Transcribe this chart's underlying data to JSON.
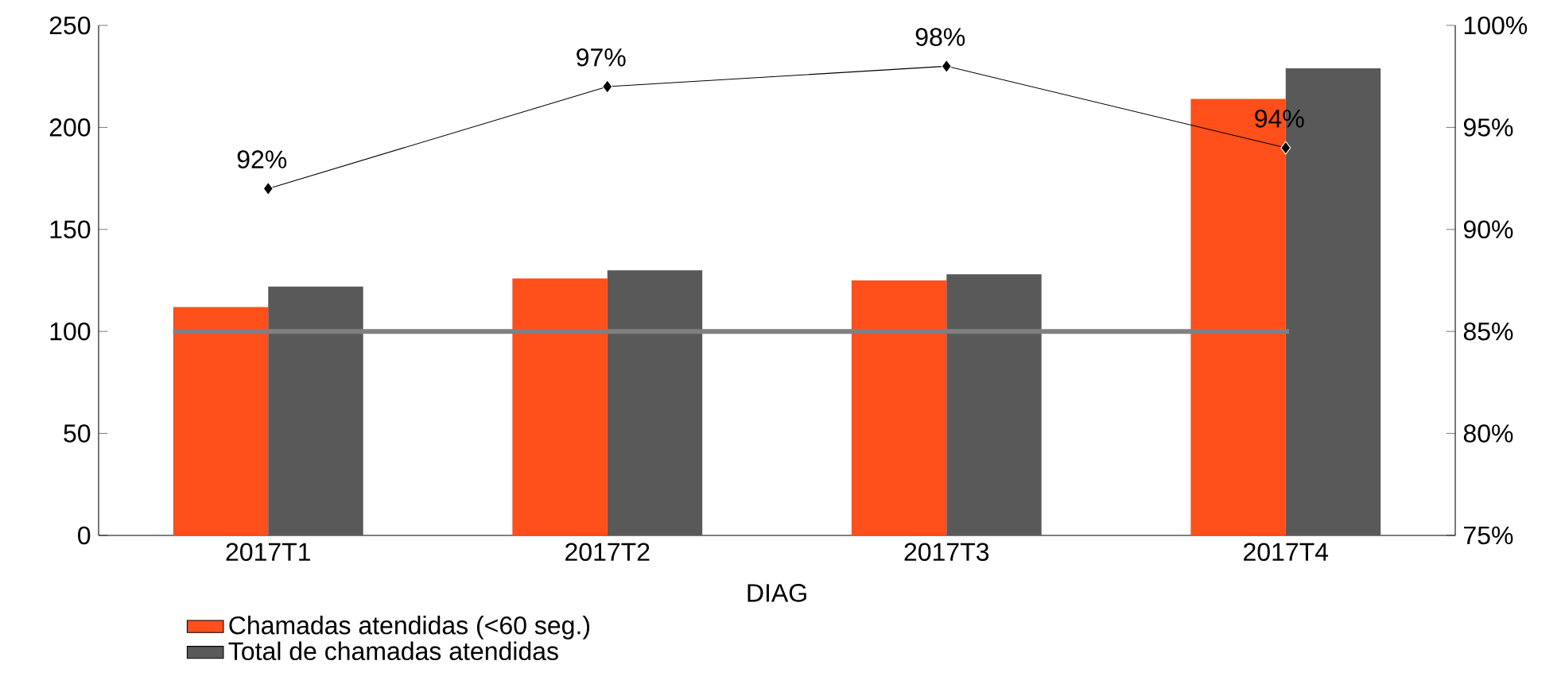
{
  "chart_data": {
    "type": "bar",
    "xlabel": "DIAG",
    "categories": [
      "2017T1",
      "2017T2",
      "2017T3",
      "2017T4"
    ],
    "series": [
      {
        "name": "Chamadas atendidas (<60 seg.)",
        "color": "#ff4f1a",
        "values": [
          112,
          126,
          125,
          214
        ]
      },
      {
        "name": "Total de chamadas atendidas",
        "color": "#595959",
        "values": [
          122,
          130,
          128,
          229
        ]
      },
      {
        "type": "line",
        "axis": "y2",
        "color": "#000000",
        "marker": "diamond",
        "values": [
          92,
          97,
          98,
          94
        ],
        "value_labels": [
          "92%",
          "97%",
          "98%",
          "94%"
        ]
      }
    ],
    "ylim": [
      0,
      250
    ],
    "yticks": [
      0,
      50,
      100,
      150,
      200,
      250
    ],
    "y2lim": [
      75,
      100
    ],
    "y2ticks": [
      {
        "value": 75,
        "label": "75%"
      },
      {
        "value": 80,
        "label": "80%"
      },
      {
        "value": 85,
        "label": "85%"
      },
      {
        "value": 90,
        "label": "90%"
      },
      {
        "value": 95,
        "label": "95%"
      },
      {
        "value": 100,
        "label": "100%"
      }
    ],
    "ref_lines": [
      {
        "axis": "y2",
        "value": 85,
        "color": "#808080"
      }
    ],
    "legend": "bottom left"
  }
}
